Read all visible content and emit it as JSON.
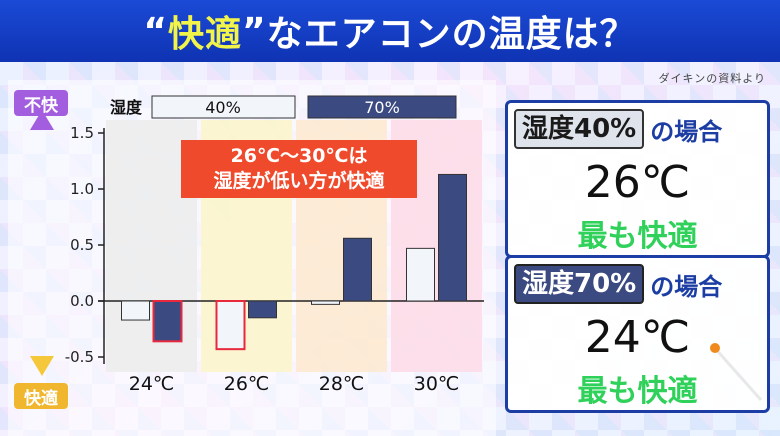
{
  "title": {
    "quote_open": "“",
    "highlight": "快適",
    "quote_close": "”",
    "rest": "なエアコンの温度は？"
  },
  "source": "ダイキンの資料より",
  "side_labels": {
    "top": "不快",
    "bottom": "快適"
  },
  "legend": {
    "label": "湿度",
    "items": [
      "40%",
      "70%"
    ]
  },
  "callout": {
    "line1": "26℃〜30℃は",
    "line2": "湿度が低い方が快適"
  },
  "box1": {
    "tag": "湿度40%",
    "suffix": "の場合",
    "temp": "26℃",
    "best": "最も快適"
  },
  "box2": {
    "tag": "湿度70%",
    "suffix": "の場合",
    "temp": "24℃",
    "best": "最も快適"
  },
  "colors": {
    "title_bg": "#1b4ad6",
    "title_highlight": "#f2f44a",
    "bar_40": "#f2f6fb",
    "bar_70": "#3c4a82",
    "bar_red_outline": "#e8283c",
    "band_24": "#ececec",
    "band_26": "#fbf5c9",
    "band_28": "#fde9cf",
    "band_30": "#fddbe6",
    "best_text": "#2fd15a",
    "box_border": "#1c3da3"
  },
  "chart_data": {
    "type": "bar",
    "categories": [
      "24℃",
      "26℃",
      "28℃",
      "30℃"
    ],
    "series": [
      {
        "name": "40%",
        "values": [
          -0.17,
          -0.43,
          -0.03,
          0.47
        ]
      },
      {
        "name": "70%",
        "values": [
          -0.36,
          -0.15,
          0.56,
          1.13
        ]
      }
    ],
    "ylim": [
      -0.6,
      1.5
    ],
    "yticks": [
      "1.5",
      "1.0",
      "0.5",
      "0.0",
      "-0.5"
    ],
    "ytick_values": [
      1.5,
      1.0,
      0.5,
      0.0,
      -0.5
    ],
    "red_outlined": [
      {
        "series": 1,
        "index": 0
      },
      {
        "series": 0,
        "index": 1
      }
    ],
    "grid": false,
    "legend": "top"
  }
}
